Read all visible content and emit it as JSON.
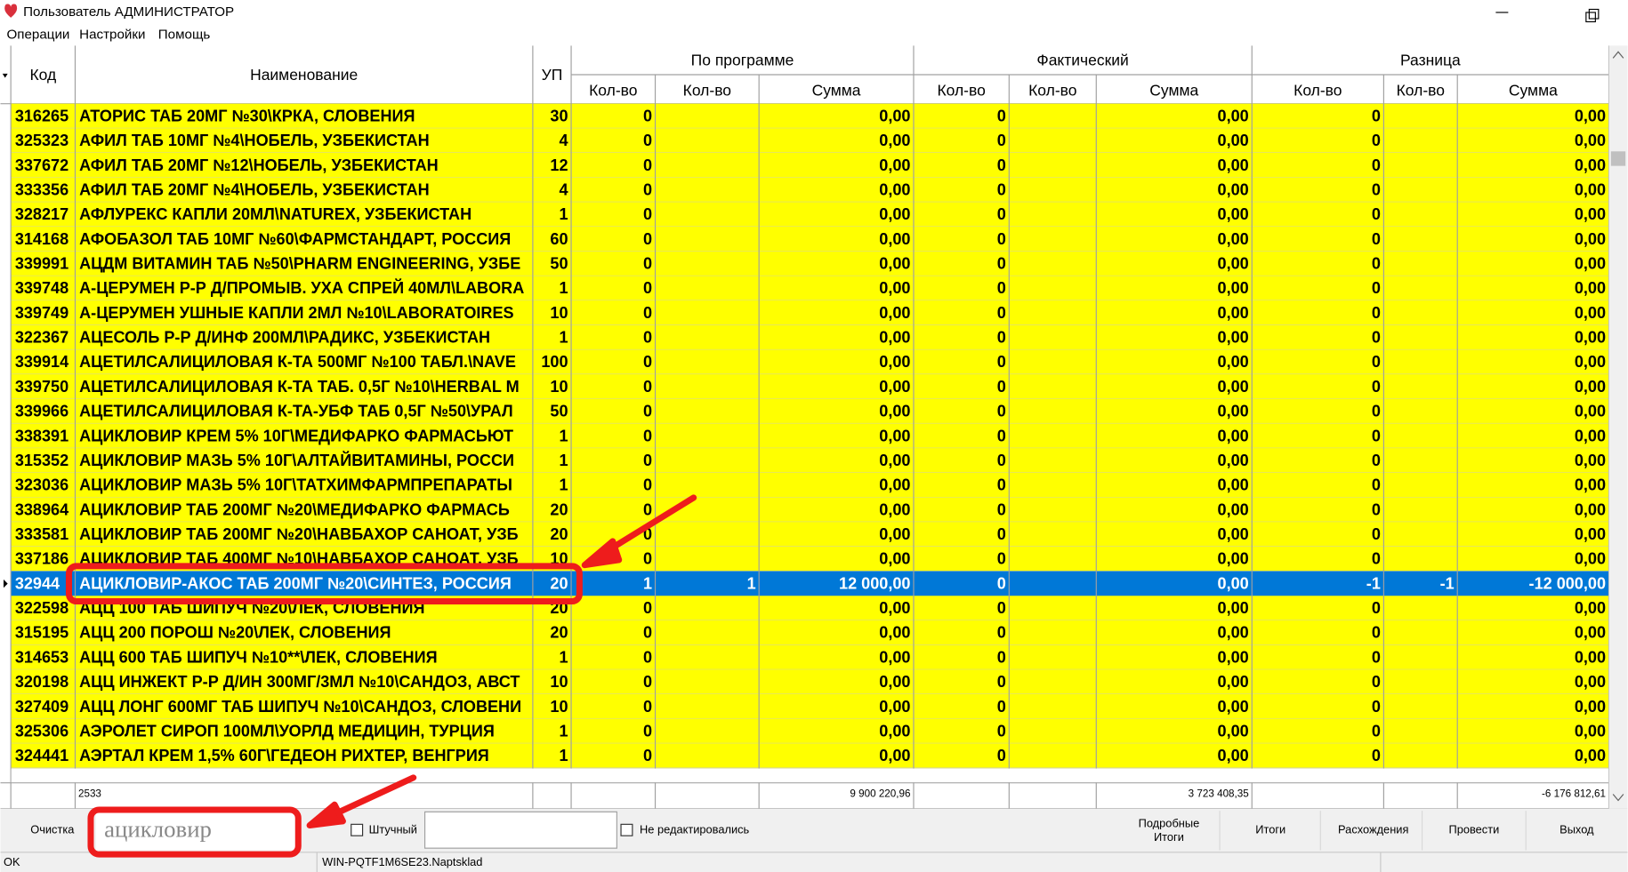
{
  "window": {
    "title": "Пользователь АДМИНИСТРАТОР",
    "menu": [
      "Операции",
      "Настройки",
      "Помощь"
    ]
  },
  "table": {
    "columns": [
      "Код",
      "Наименование",
      "УП"
    ],
    "groups": [
      {
        "title": "По программе",
        "columns": [
          "Кол-во",
          "Кол-во",
          "Сумма"
        ]
      },
      {
        "title": "Фактический",
        "columns": [
          "Кол-во",
          "Кол-во",
          "Сумма"
        ]
      },
      {
        "title": "Разница",
        "columns": [
          "Кол-во",
          "Кол-во",
          "Сумма"
        ]
      }
    ],
    "rows": [
      [
        "316265",
        "АТОРИС ТАБ 20МГ №30\\КРКА, СЛОВЕНИЯ",
        "30",
        "0",
        null,
        "0,00",
        "0",
        null,
        "0,00",
        "0",
        null,
        "0,00"
      ],
      [
        "325323",
        "АФИЛ ТАБ 10МГ №4\\НОБЕЛЬ, УЗБЕКИСТАН",
        "4",
        "0",
        null,
        "0,00",
        "0",
        null,
        "0,00",
        "0",
        null,
        "0,00"
      ],
      [
        "337672",
        "АФИЛ ТАБ 20МГ №12\\НОБЕЛЬ, УЗБЕКИСТАН",
        "12",
        "0",
        null,
        "0,00",
        "0",
        null,
        "0,00",
        "0",
        null,
        "0,00"
      ],
      [
        "333356",
        "АФИЛ ТАБ 20МГ №4\\НОБЕЛЬ, УЗБЕКИСТАН",
        "4",
        "0",
        null,
        "0,00",
        "0",
        null,
        "0,00",
        "0",
        null,
        "0,00"
      ],
      [
        "328217",
        "АФЛУРЕКС КАПЛИ 20МЛ\\NATUREX, УЗБЕКИСТАН",
        "1",
        "0",
        null,
        "0,00",
        "0",
        null,
        "0,00",
        "0",
        null,
        "0,00"
      ],
      [
        "314168",
        "АФОБАЗОЛ ТАБ 10МГ №60\\ФАРМСТАНДАРТ, РОССИЯ",
        "60",
        "0",
        null,
        "0,00",
        "0",
        null,
        "0,00",
        "0",
        null,
        "0,00"
      ],
      [
        "339991",
        "АЦДМ ВИТАМИН ТАБ №50\\PHARM ENGINEERING, УЗБЕ",
        "50",
        "0",
        null,
        "0,00",
        "0",
        null,
        "0,00",
        "0",
        null,
        "0,00"
      ],
      [
        "339748",
        "А-ЦЕРУМЕН Р-Р Д/ПРОМЫВ. УХА СПРЕЙ 40МЛ\\LABORA",
        "1",
        "0",
        null,
        "0,00",
        "0",
        null,
        "0,00",
        "0",
        null,
        "0,00"
      ],
      [
        "339749",
        "А-ЦЕРУМЕН УШНЫЕ КАПЛИ 2МЛ №10\\LABORATOIRES",
        "10",
        "0",
        null,
        "0,00",
        "0",
        null,
        "0,00",
        "0",
        null,
        "0,00"
      ],
      [
        "322367",
        "АЦЕСОЛЬ Р-Р Д/ИНФ 200МЛ\\РАДИКС, УЗБЕКИСТАН",
        "1",
        "0",
        null,
        "0,00",
        "0",
        null,
        "0,00",
        "0",
        null,
        "0,00"
      ],
      [
        "339914",
        "АЦЕТИЛСАЛИЦИЛОВАЯ К-ТА 500МГ №100 ТАБЛ.\\NAVE",
        "100",
        "0",
        null,
        "0,00",
        "0",
        null,
        "0,00",
        "0",
        null,
        "0,00"
      ],
      [
        "339750",
        "АЦЕТИЛСАЛИЦИЛОВАЯ К-ТА ТАБ. 0,5Г №10\\HERBAL M",
        "10",
        "0",
        null,
        "0,00",
        "0",
        null,
        "0,00",
        "0",
        null,
        "0,00"
      ],
      [
        "339966",
        "АЦЕТИЛСАЛИЦИЛОВАЯ К-ТА-УБФ ТАБ 0,5Г №50\\УРАЛ",
        "50",
        "0",
        null,
        "0,00",
        "0",
        null,
        "0,00",
        "0",
        null,
        "0,00"
      ],
      [
        "338391",
        "АЦИКЛОВИР КРЕМ 5% 10Г\\МЕДИФАРКО ФАРМАСЬЮТ",
        "1",
        "0",
        null,
        "0,00",
        "0",
        null,
        "0,00",
        "0",
        null,
        "0,00"
      ],
      [
        "315352",
        "АЦИКЛОВИР МАЗЬ 5% 10Г\\АЛТАЙВИТАМИНЫ, РОССИ",
        "1",
        "0",
        null,
        "0,00",
        "0",
        null,
        "0,00",
        "0",
        null,
        "0,00"
      ],
      [
        "323036",
        "АЦИКЛОВИР МАЗЬ 5% 10Г\\ТАТХИМФАРМПРЕПАРАТЫ",
        "1",
        "0",
        null,
        "0,00",
        "0",
        null,
        "0,00",
        "0",
        null,
        "0,00"
      ],
      [
        "338964",
        "АЦИКЛОВИР ТАБ 200МГ №20\\МЕДИФАРКО ФАРМАСЬ",
        "20",
        "0",
        null,
        "0,00",
        "0",
        null,
        "0,00",
        "0",
        null,
        "0,00"
      ],
      [
        "333581",
        "АЦИКЛОВИР ТАБ 200МГ №20\\НАВБАХОР САНОАТ, УЗБ",
        "20",
        "0",
        null,
        "0,00",
        "0",
        null,
        "0,00",
        "0",
        null,
        "0,00"
      ],
      [
        "337186",
        "АЦИКЛОВИР ТАБ 400МГ №10\\НАВБАХОР САНОАТ, УЗБ",
        "10",
        "0",
        null,
        "0,00",
        "0",
        null,
        "0,00",
        "0",
        null,
        "0,00"
      ],
      [
        "32944",
        "АЦИКЛОВИР-АКОС ТАБ 200МГ №20\\СИНТЕЗ, РОССИЯ",
        "20",
        "1",
        "1",
        "12 000,00",
        "0",
        null,
        "0,00",
        "-1",
        "-1",
        "-12 000,00"
      ],
      [
        "322598",
        "АЦЦ 100 ТАБ ШИПУЧ №20\\ЛЕК, СЛОВЕНИЯ",
        "20",
        "0",
        null,
        "0,00",
        "0",
        null,
        "0,00",
        "0",
        null,
        "0,00"
      ],
      [
        "315195",
        "АЦЦ 200 ПОРОШ №20\\ЛЕК, СЛОВЕНИЯ",
        "20",
        "0",
        null,
        "0,00",
        "0",
        null,
        "0,00",
        "0",
        null,
        "0,00"
      ],
      [
        "314653",
        "АЦЦ 600 ТАБ ШИПУЧ №10**\\ЛЕК, СЛОВЕНИЯ",
        "1",
        "0",
        null,
        "0,00",
        "0",
        null,
        "0,00",
        "0",
        null,
        "0,00"
      ],
      [
        "320198",
        "АЦЦ ИНЖЕКТ Р-Р Д/ИН 300МГ/3МЛ №10\\САНДОЗ, АВСТ",
        "10",
        "0",
        null,
        "0,00",
        "0",
        null,
        "0,00",
        "0",
        null,
        "0,00"
      ],
      [
        "327409",
        "АЦЦ ЛОНГ 600МГ ТАБ ШИПУЧ №10\\САНДОЗ, СЛОВЕНИ",
        "10",
        "0",
        null,
        "0,00",
        "0",
        null,
        "0,00",
        "0",
        null,
        "0,00"
      ],
      [
        "325306",
        "АЭРОЛЕТ СИРОП 100МЛ\\УОРЛД МЕДИЦИН, ТУРЦИЯ",
        "1",
        "0",
        null,
        "0,00",
        "0",
        null,
        "0,00",
        "0",
        null,
        "0,00"
      ],
      [
        "324441",
        "АЭРТАЛ КРЕМ 1,5% 60Г\\ГЕДЕОН РИХТЕР, ВЕНГРИЯ",
        "1",
        "0",
        null,
        "0,00",
        "0",
        null,
        "0,00",
        "0",
        null,
        "0,00"
      ]
    ],
    "totals": {
      "count": "2533",
      "program_sum": "9 900 220,96",
      "fact_sum": "3 723 408,35",
      "diff_sum": "-6 176 812,61"
    }
  },
  "toolbar": {
    "clear": "Очистка",
    "search": "ацикловир",
    "unit_checkbox": "Штучный",
    "not_edited_checkbox": "Не редактировались",
    "details_button": [
      "Подробные",
      "Итоги"
    ],
    "buttons": [
      "Итоги",
      "Расхождения",
      "Провести",
      "Выход"
    ]
  },
  "status": {
    "state": "OK",
    "database": "WIN-PQTF1M6SE23.Naptsklad"
  }
}
